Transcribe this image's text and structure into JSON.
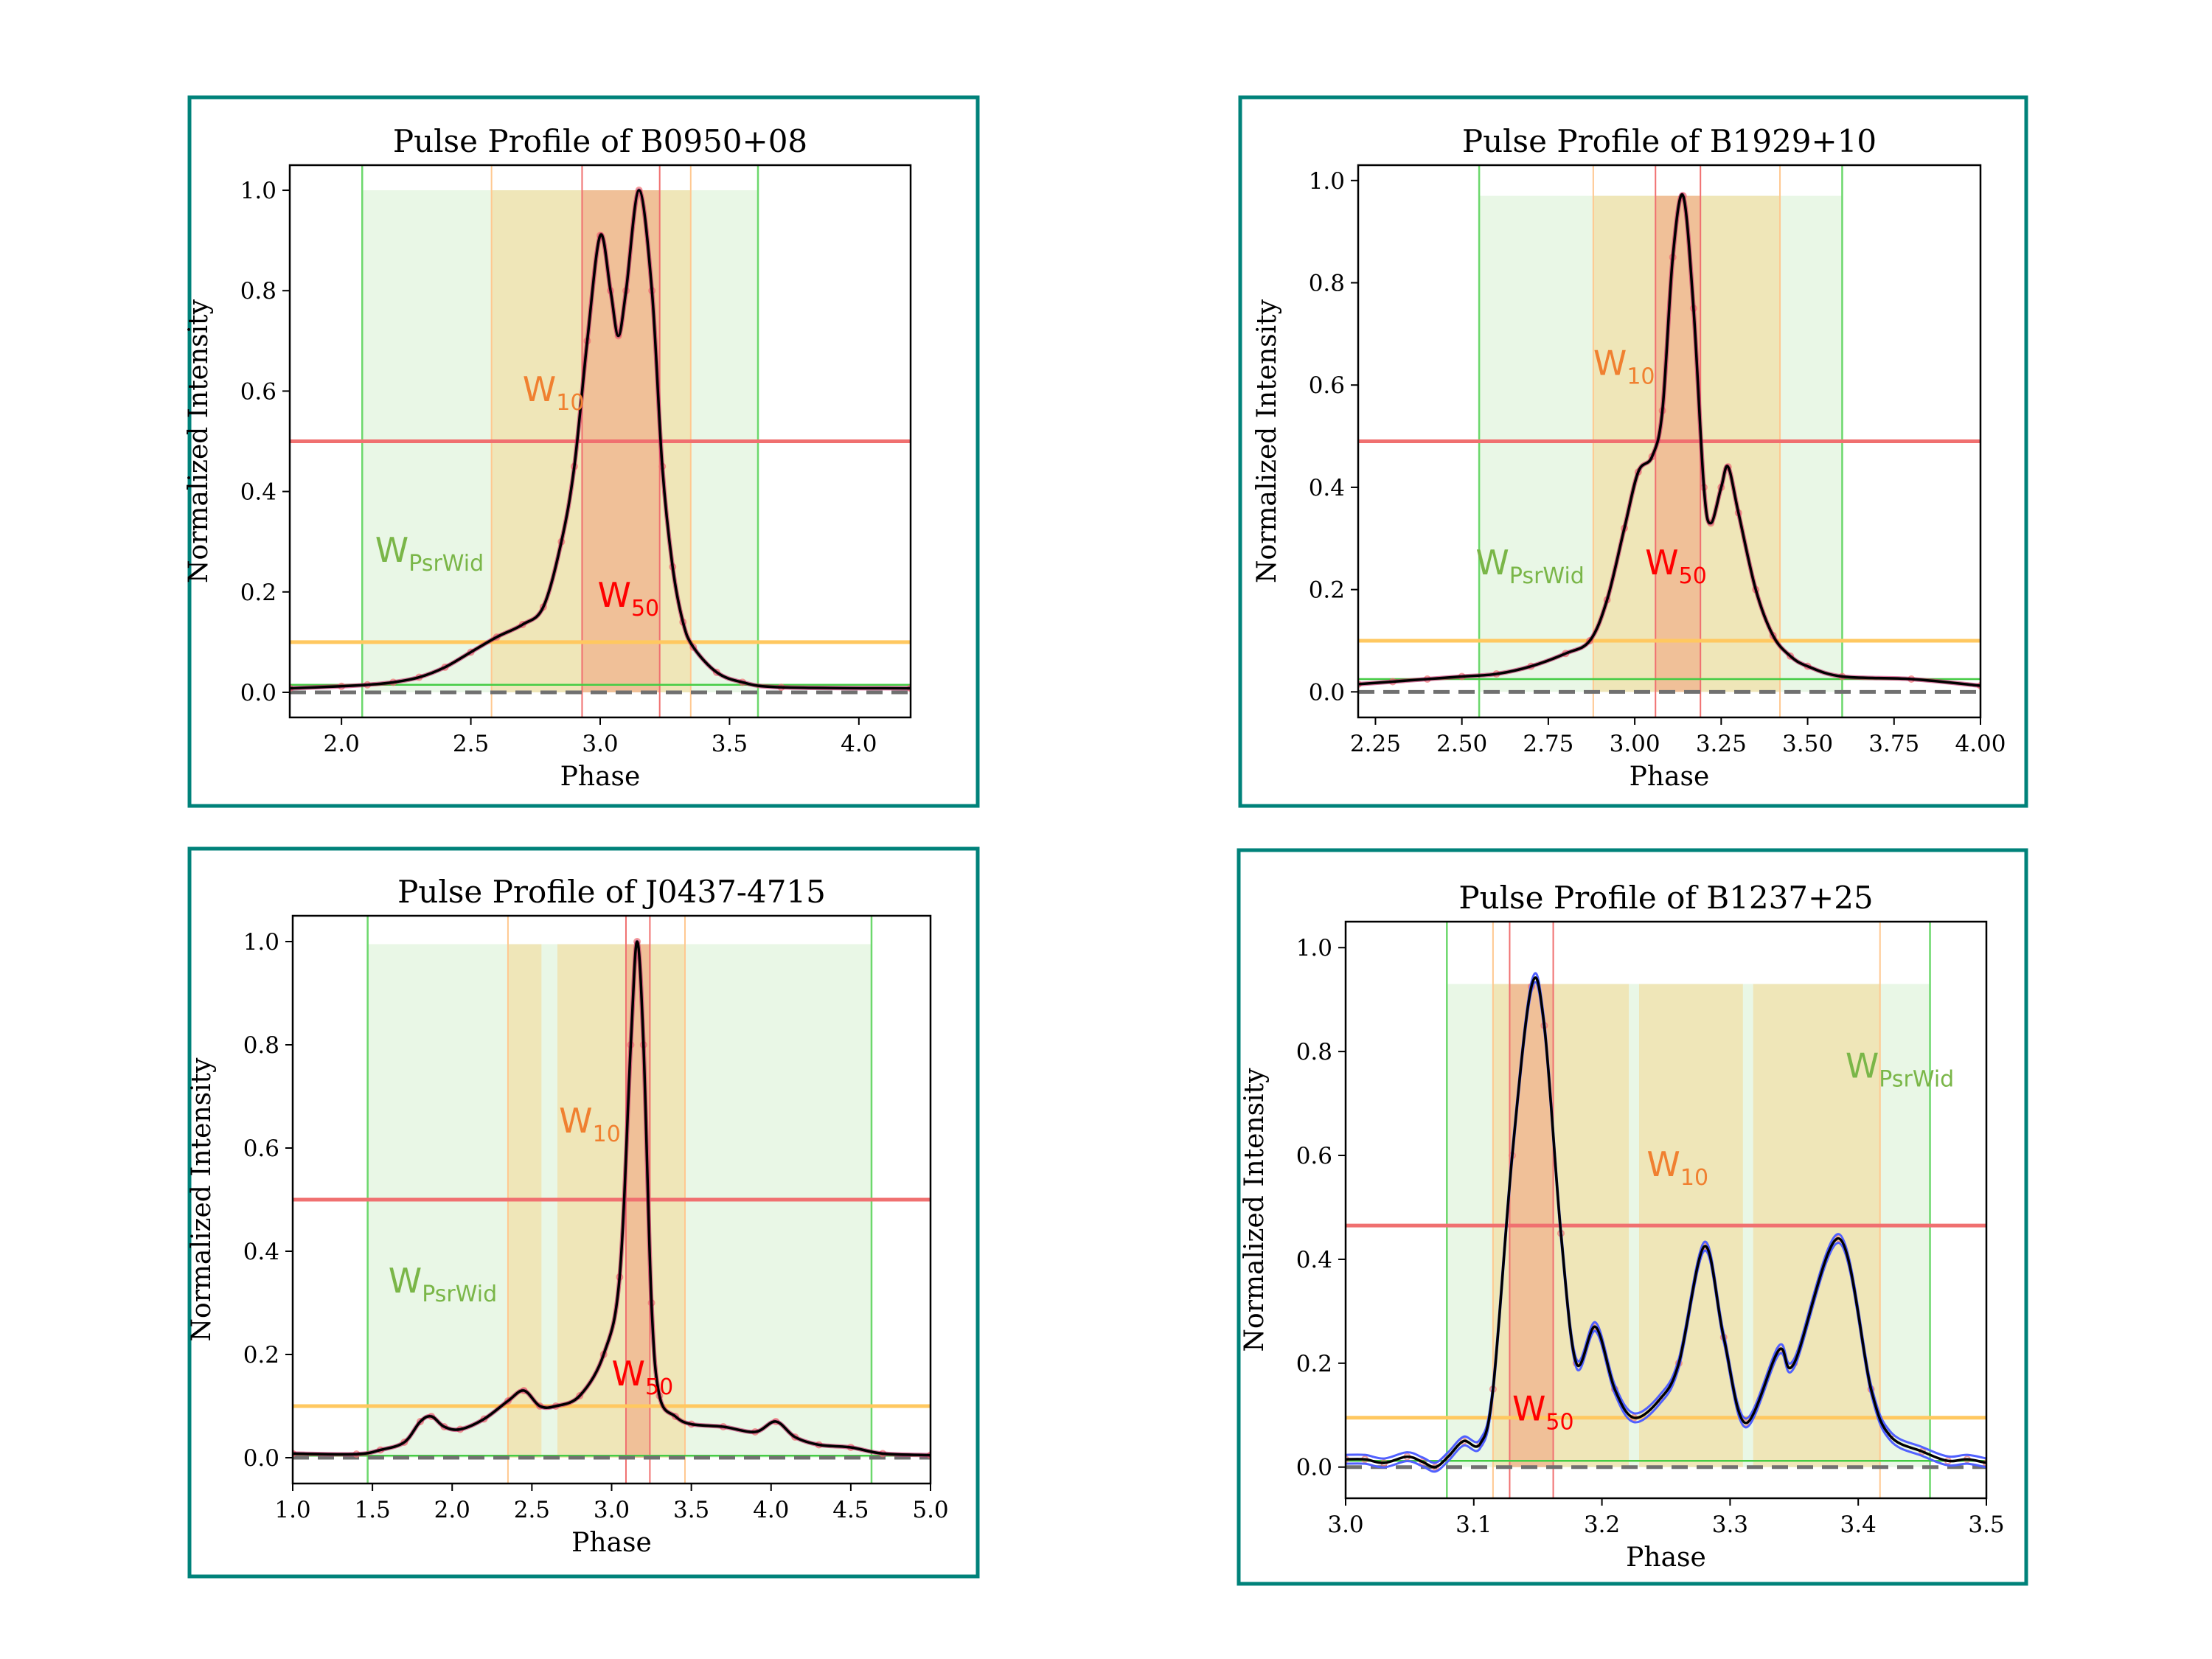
{
  "colors": {
    "frame": "#00827a",
    "psrwid": "#7ab648",
    "w10": "#f08030",
    "w50": "#ff0000",
    "green_line": "#44cc44",
    "red_line": "#f07070",
    "orange_line": "#ffc860",
    "curve": "#000000",
    "envelope": "#5060ff",
    "points": "#f07070"
  },
  "chart_data": [
    {
      "type": "line",
      "title": "Pulse Profile of B0950+08",
      "xlabel": "Phase",
      "ylabel": "Normalized Intensity",
      "xlim": [
        1.8,
        4.2
      ],
      "ylim": [
        -0.05,
        1.05
      ],
      "xticks": [
        2.0,
        2.5,
        3.0,
        3.5,
        4.0
      ],
      "xtick_labels": [
        "2.0",
        "2.5",
        "3.0",
        "3.5",
        "4.0"
      ],
      "yticks": [
        0,
        0.2,
        0.4,
        0.6,
        0.8,
        1.0
      ],
      "ytick_labels": [
        "0.0",
        "0.2",
        "0.4",
        "0.6",
        "0.8",
        "1.0"
      ],
      "psrwid_band": [
        2.08,
        3.61
      ],
      "band_top": 1.0,
      "w10_bands": [
        [
          2.58,
          3.35
        ]
      ],
      "w50_band": [
        2.93,
        3.23
      ],
      "w50_level": 0.5,
      "w10_level": 0.1,
      "baseline_level": 0.015,
      "labels": [
        {
          "main": "W",
          "sub": "10",
          "kind": "w10",
          "x": 2.7,
          "y": 0.58
        },
        {
          "main": "W",
          "sub": "PsrWid",
          "kind": "psrwid",
          "x": 2.13,
          "y": 0.26
        },
        {
          "main": "W",
          "sub": "50",
          "kind": "w50",
          "x": 2.99,
          "y": 0.17
        }
      ],
      "envelope": false,
      "profile": [
        [
          1.8,
          0.008
        ],
        [
          2.0,
          0.012
        ],
        [
          2.1,
          0.015
        ],
        [
          2.2,
          0.02
        ],
        [
          2.3,
          0.03
        ],
        [
          2.4,
          0.05
        ],
        [
          2.5,
          0.08
        ],
        [
          2.6,
          0.11
        ],
        [
          2.7,
          0.135
        ],
        [
          2.78,
          0.17
        ],
        [
          2.85,
          0.3
        ],
        [
          2.9,
          0.45
        ],
        [
          2.95,
          0.7
        ],
        [
          3.0,
          0.91
        ],
        [
          3.04,
          0.8
        ],
        [
          3.07,
          0.71
        ],
        [
          3.1,
          0.8
        ],
        [
          3.15,
          1.0
        ],
        [
          3.2,
          0.8
        ],
        [
          3.24,
          0.45
        ],
        [
          3.28,
          0.25
        ],
        [
          3.32,
          0.14
        ],
        [
          3.36,
          0.09
        ],
        [
          3.45,
          0.04
        ],
        [
          3.55,
          0.02
        ],
        [
          3.7,
          0.01
        ],
        [
          4.2,
          0.008
        ]
      ]
    },
    {
      "type": "line",
      "title": "Pulse Profile of B1929+10",
      "xlabel": "Phase",
      "ylabel": "Normalized Intensity",
      "xlim": [
        2.2,
        4.0
      ],
      "ylim": [
        -0.05,
        1.03
      ],
      "xticks": [
        2.25,
        2.5,
        2.75,
        3.0,
        3.25,
        3.5,
        3.75,
        4.0
      ],
      "xtick_labels": [
        "2.25",
        "2.50",
        "2.75",
        "3.00",
        "3.25",
        "3.50",
        "3.75",
        "4.00"
      ],
      "yticks": [
        0,
        0.2,
        0.4,
        0.6,
        0.8,
        1.0
      ],
      "ytick_labels": [
        "0.0",
        "0.2",
        "0.4",
        "0.6",
        "0.8",
        "1.0"
      ],
      "psrwid_band": [
        2.55,
        3.6
      ],
      "band_top": 0.97,
      "w10_bands": [
        [
          2.88,
          3.42
        ]
      ],
      "w50_band": [
        3.06,
        3.19
      ],
      "w50_level": 0.49,
      "w10_level": 0.1,
      "baseline_level": 0.025,
      "labels": [
        {
          "main": "W",
          "sub": "10",
          "kind": "w10",
          "x": 2.88,
          "y": 0.62
        },
        {
          "main": "W",
          "sub": "PsrWid",
          "kind": "psrwid",
          "x": 2.54,
          "y": 0.23
        },
        {
          "main": "W",
          "sub": "50",
          "kind": "w50",
          "x": 3.03,
          "y": 0.23
        }
      ],
      "envelope": false,
      "profile": [
        [
          2.2,
          0.015
        ],
        [
          2.3,
          0.02
        ],
        [
          2.4,
          0.025
        ],
        [
          2.5,
          0.03
        ],
        [
          2.6,
          0.035
        ],
        [
          2.7,
          0.05
        ],
        [
          2.8,
          0.075
        ],
        [
          2.87,
          0.1
        ],
        [
          2.92,
          0.18
        ],
        [
          2.97,
          0.32
        ],
        [
          3.01,
          0.43
        ],
        [
          3.05,
          0.46
        ],
        [
          3.08,
          0.55
        ],
        [
          3.11,
          0.85
        ],
        [
          3.14,
          0.97
        ],
        [
          3.17,
          0.75
        ],
        [
          3.2,
          0.4
        ],
        [
          3.22,
          0.33
        ],
        [
          3.25,
          0.4
        ],
        [
          3.27,
          0.44
        ],
        [
          3.3,
          0.35
        ],
        [
          3.35,
          0.2
        ],
        [
          3.4,
          0.11
        ],
        [
          3.45,
          0.07
        ],
        [
          3.5,
          0.05
        ],
        [
          3.6,
          0.03
        ],
        [
          3.8,
          0.025
        ],
        [
          4.0,
          0.012
        ]
      ]
    },
    {
      "type": "line",
      "title": "Pulse Profile of J0437-4715",
      "xlabel": "Phase",
      "ylabel": "Normalized Intensity",
      "xlim": [
        1.0,
        5.0
      ],
      "ylim": [
        -0.05,
        1.05
      ],
      "xticks": [
        1.0,
        1.5,
        2.0,
        2.5,
        3.0,
        3.5,
        4.0,
        4.5,
        5.0
      ],
      "xtick_labels": [
        "1.0",
        "1.5",
        "2.0",
        "2.5",
        "3.0",
        "3.5",
        "4.0",
        "4.5",
        "5.0"
      ],
      "yticks": [
        0,
        0.2,
        0.4,
        0.6,
        0.8,
        1.0
      ],
      "ytick_labels": [
        "0.0",
        "0.2",
        "0.4",
        "0.6",
        "0.8",
        "1.0"
      ],
      "psrwid_band": [
        1.47,
        4.63
      ],
      "band_top": 0.995,
      "w10_bands": [
        [
          2.35,
          2.56
        ],
        [
          2.66,
          3.46
        ]
      ],
      "w50_band": [
        3.09,
        3.24
      ],
      "w50_level": 0.5,
      "w10_level": 0.1,
      "baseline_level": 0.004,
      "labels": [
        {
          "main": "W",
          "sub": "10",
          "kind": "w10",
          "x": 2.67,
          "y": 0.63
        },
        {
          "main": "W",
          "sub": "PsrWid",
          "kind": "psrwid",
          "x": 1.6,
          "y": 0.32
        },
        {
          "main": "W",
          "sub": "50",
          "kind": "w50",
          "x": 3.0,
          "y": 0.14
        }
      ],
      "envelope": false,
      "profile": [
        [
          1.0,
          0.008
        ],
        [
          1.4,
          0.007
        ],
        [
          1.55,
          0.015
        ],
        [
          1.7,
          0.03
        ],
        [
          1.8,
          0.07
        ],
        [
          1.87,
          0.08
        ],
        [
          1.95,
          0.06
        ],
        [
          2.05,
          0.055
        ],
        [
          2.2,
          0.075
        ],
        [
          2.35,
          0.11
        ],
        [
          2.45,
          0.13
        ],
        [
          2.55,
          0.1
        ],
        [
          2.65,
          0.1
        ],
        [
          2.8,
          0.12
        ],
        [
          2.95,
          0.2
        ],
        [
          3.05,
          0.35
        ],
        [
          3.12,
          0.8
        ],
        [
          3.16,
          1.0
        ],
        [
          3.2,
          0.8
        ],
        [
          3.25,
          0.3
        ],
        [
          3.3,
          0.12
        ],
        [
          3.4,
          0.08
        ],
        [
          3.5,
          0.065
        ],
        [
          3.7,
          0.06
        ],
        [
          3.9,
          0.05
        ],
        [
          4.03,
          0.07
        ],
        [
          4.15,
          0.04
        ],
        [
          4.3,
          0.025
        ],
        [
          4.5,
          0.02
        ],
        [
          4.7,
          0.008
        ],
        [
          5.0,
          0.005
        ]
      ]
    },
    {
      "type": "line",
      "title": "Pulse Profile of B1237+25",
      "xlabel": "Phase",
      "ylabel": "Normalized Intensity",
      "xlim": [
        3.0,
        3.5
      ],
      "ylim": [
        -0.06,
        1.05
      ],
      "xticks": [
        3.0,
        3.1,
        3.2,
        3.3,
        3.4,
        3.5
      ],
      "xtick_labels": [
        "3.0",
        "3.1",
        "3.2",
        "3.3",
        "3.4",
        "3.5"
      ],
      "yticks": [
        0,
        0.2,
        0.4,
        0.6,
        0.8,
        1.0
      ],
      "ytick_labels": [
        "0.0",
        "0.2",
        "0.4",
        "0.6",
        "0.8",
        "1.0"
      ],
      "psrwid_band": [
        3.079,
        3.456
      ],
      "band_top": 0.93,
      "w10_bands": [
        [
          3.115,
          3.221
        ],
        [
          3.229,
          3.31
        ],
        [
          3.318,
          3.417
        ]
      ],
      "w50_band": [
        3.128,
        3.162
      ],
      "w50_level": 0.465,
      "w10_level": 0.095,
      "baseline_level": 0.012,
      "labels": [
        {
          "main": "W",
          "sub": "10",
          "kind": "w10",
          "x": 3.235,
          "y": 0.56
        },
        {
          "main": "W",
          "sub": "PsrWid",
          "kind": "psrwid",
          "x": 3.39,
          "y": 0.75
        },
        {
          "main": "W",
          "sub": "50",
          "kind": "w50",
          "x": 3.13,
          "y": 0.09
        }
      ],
      "envelope": true,
      "profile": [
        [
          3.0,
          0.015
        ],
        [
          3.015,
          0.015
        ],
        [
          3.03,
          0.008
        ],
        [
          3.048,
          0.02
        ],
        [
          3.06,
          0.01
        ],
        [
          3.07,
          0.0
        ],
        [
          3.08,
          0.02
        ],
        [
          3.092,
          0.05
        ],
        [
          3.105,
          0.045
        ],
        [
          3.115,
          0.15
        ],
        [
          3.13,
          0.6
        ],
        [
          3.145,
          0.925
        ],
        [
          3.155,
          0.85
        ],
        [
          3.168,
          0.45
        ],
        [
          3.18,
          0.2
        ],
        [
          3.195,
          0.27
        ],
        [
          3.21,
          0.15
        ],
        [
          3.225,
          0.095
        ],
        [
          3.245,
          0.13
        ],
        [
          3.26,
          0.2
        ],
        [
          3.28,
          0.425
        ],
        [
          3.295,
          0.25
        ],
        [
          3.312,
          0.085
        ],
        [
          3.338,
          0.225
        ],
        [
          3.35,
          0.2
        ],
        [
          3.385,
          0.44
        ],
        [
          3.41,
          0.15
        ],
        [
          3.425,
          0.06
        ],
        [
          3.45,
          0.03
        ],
        [
          3.47,
          0.012
        ],
        [
          3.485,
          0.015
        ],
        [
          3.5,
          0.008
        ]
      ]
    }
  ]
}
